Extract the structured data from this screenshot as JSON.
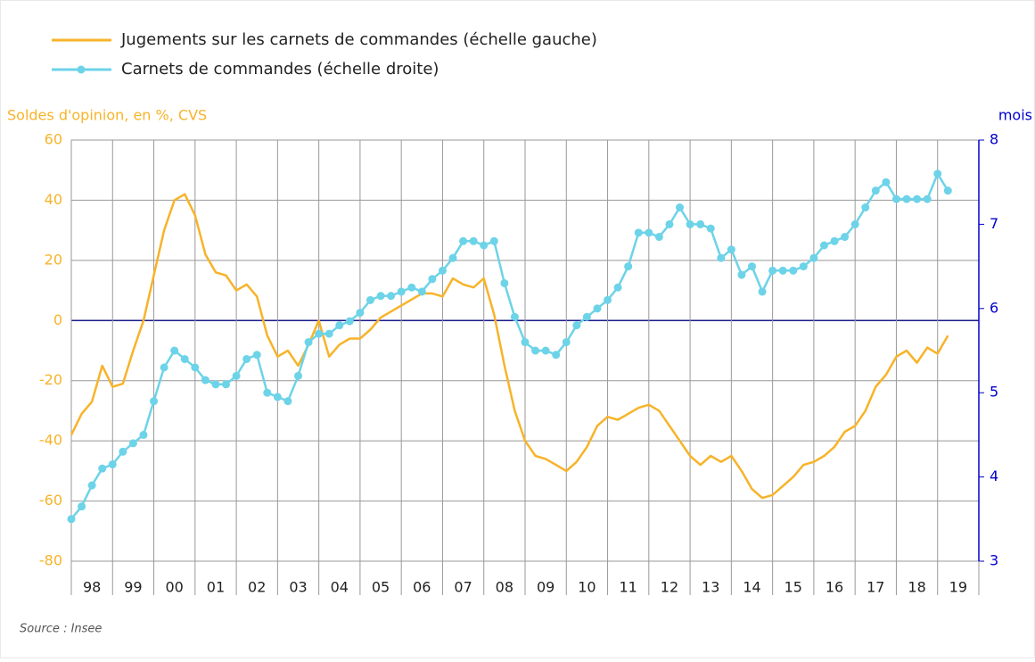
{
  "chart_data": {
    "type": "line",
    "series": [
      {
        "name": "Jugements sur les carnets de commandes (échelle gauche)",
        "color": "#f7b329",
        "axis": "y",
        "values": [
          -38,
          -31,
          -27,
          -15,
          -22,
          -21,
          -10,
          0,
          15,
          30,
          40,
          42,
          35,
          22,
          16,
          15,
          10,
          12,
          8,
          -5,
          -12,
          -10,
          -15,
          -8,
          0,
          -12,
          -8,
          -6,
          -6,
          -3,
          1,
          3,
          5,
          7,
          9,
          9,
          8,
          14,
          12,
          11,
          14,
          2,
          -15,
          -30,
          -40,
          -45,
          -46,
          -48,
          -50,
          -47,
          -42,
          -35,
          -32,
          -33,
          -31,
          -29,
          -28,
          -30,
          -35,
          -40,
          -45,
          -48,
          -45,
          -47,
          -45,
          -50,
          -56,
          -59,
          -58,
          -55,
          -52,
          -48,
          -47,
          -45,
          -42,
          -37,
          -35,
          -30,
          -22,
          -18,
          -12,
          -10,
          -14,
          -9,
          -11,
          -5
        ]
      },
      {
        "name": "Carnets de commandes (échelle droite)",
        "color": "#6dd3e8",
        "axis": "y2",
        "values": [
          3.5,
          3.65,
          3.9,
          4.1,
          4.15,
          4.3,
          4.4,
          4.5,
          4.9,
          5.3,
          5.5,
          5.4,
          5.3,
          5.15,
          5.1,
          5.1,
          5.2,
          5.4,
          5.45,
          5.0,
          4.95,
          4.9,
          5.2,
          5.6,
          5.7,
          5.7,
          5.8,
          5.85,
          5.95,
          6.1,
          6.15,
          6.15,
          6.2,
          6.25,
          6.2,
          6.35,
          6.45,
          6.6,
          6.8,
          6.8,
          6.75,
          6.8,
          6.3,
          5.9,
          5.6,
          5.5,
          5.5,
          5.45,
          5.6,
          5.8,
          5.9,
          6.0,
          6.1,
          6.25,
          6.5,
          6.9,
          6.9,
          6.85,
          7.0,
          7.2,
          7.0,
          7.0,
          6.95,
          6.6,
          6.7,
          6.4,
          6.5,
          6.2,
          6.45,
          6.45,
          6.45,
          6.5,
          6.6,
          6.75,
          6.8,
          6.85,
          7.0,
          7.2,
          7.4,
          7.5,
          7.3,
          7.3,
          7.3,
          7.3,
          7.6,
          7.4
        ]
      }
    ],
    "x": [
      1998,
      1998.25,
      1998.5,
      1998.75,
      1999,
      1999.25,
      1999.5,
      1999.75,
      2000,
      2000.25,
      2000.5,
      2000.75,
      2001,
      2001.25,
      2001.5,
      2001.75,
      2002,
      2002.25,
      2002.5,
      2002.75,
      2003,
      2003.25,
      2003.5,
      2003.75,
      2004,
      2004.25,
      2004.5,
      2004.75,
      2005,
      2005.25,
      2005.5,
      2005.75,
      2006,
      2006.25,
      2006.5,
      2006.75,
      2007,
      2007.25,
      2007.5,
      2007.75,
      2008,
      2008.25,
      2008.5,
      2008.75,
      2009,
      2009.25,
      2009.5,
      2009.75,
      2010,
      2010.25,
      2010.5,
      2010.75,
      2011,
      2011.25,
      2011.5,
      2011.75,
      2012,
      2012.25,
      2012.5,
      2012.75,
      2013,
      2013.25,
      2013.5,
      2013.75,
      2014,
      2014.25,
      2014.5,
      2014.75,
      2015,
      2015.25,
      2015.5,
      2015.75,
      2016,
      2016.25,
      2016.5,
      2016.75,
      2017,
      2017.25,
      2017.5,
      2017.75,
      2018,
      2018.25,
      2018.5,
      2018.75,
      2019,
      2019.25
    ],
    "xlim": [
      1998,
      2020
    ],
    "xticks": [
      {
        "value": 1998,
        "label": "98"
      },
      {
        "value": 1999,
        "label": "99"
      },
      {
        "value": 2000,
        "label": "00"
      },
      {
        "value": 2001,
        "label": "01"
      },
      {
        "value": 2002,
        "label": "02"
      },
      {
        "value": 2003,
        "label": "03"
      },
      {
        "value": 2004,
        "label": "04"
      },
      {
        "value": 2005,
        "label": "05"
      },
      {
        "value": 2006,
        "label": "06"
      },
      {
        "value": 2007,
        "label": "07"
      },
      {
        "value": 2008,
        "label": "08"
      },
      {
        "value": 2009,
        "label": "09"
      },
      {
        "value": 2010,
        "label": "10"
      },
      {
        "value": 2011,
        "label": "11"
      },
      {
        "value": 2012,
        "label": "12"
      },
      {
        "value": 2013,
        "label": "13"
      },
      {
        "value": 2014,
        "label": "14"
      },
      {
        "value": 2015,
        "label": "15"
      },
      {
        "value": 2016,
        "label": "16"
      },
      {
        "value": 2017,
        "label": "17"
      },
      {
        "value": 2018,
        "label": "18"
      },
      {
        "value": 2019,
        "label": "19"
      }
    ],
    "ylim": [
      -80,
      60
    ],
    "yticks": [
      -80,
      -60,
      -40,
      -20,
      0,
      20,
      40,
      60
    ],
    "y2lim": [
      3,
      8
    ],
    "y2ticks": [
      3,
      4,
      5,
      6,
      7,
      8
    ],
    "ylabel": "Soldes d'opinion, en %, CVS",
    "y2label": "mois",
    "source": "Source : Insee",
    "grid": true
  }
}
